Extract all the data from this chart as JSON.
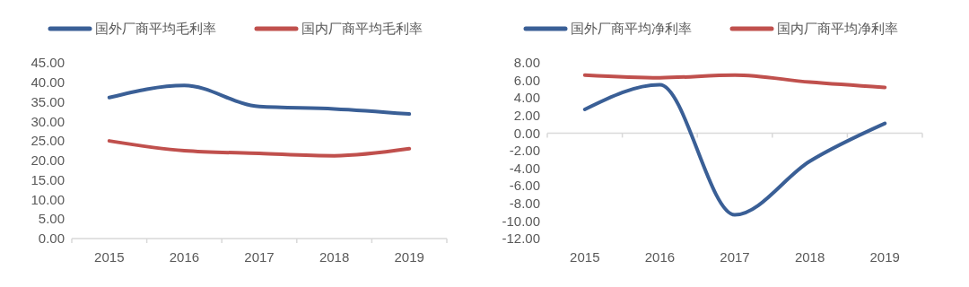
{
  "chart_data": [
    {
      "type": "line",
      "categories": [
        "2015",
        "2016",
        "2017",
        "2018",
        "2019"
      ],
      "legend": "top",
      "line_style": "solid",
      "ylim": [
        0,
        45
      ],
      "yticks": [
        {
          "value": 0,
          "label": "0.00"
        },
        {
          "value": 5,
          "label": "5.00"
        },
        {
          "value": 10,
          "label": "10.00"
        },
        {
          "value": 15,
          "label": "15.00"
        },
        {
          "value": 20,
          "label": "20.00"
        },
        {
          "value": 25,
          "label": "25.00"
        },
        {
          "value": 30,
          "label": "30.00"
        },
        {
          "value": 35,
          "label": "35.00"
        },
        {
          "value": 40,
          "label": "40.00"
        },
        {
          "value": 45,
          "label": "45.00"
        }
      ],
      "series": [
        {
          "name": "国外厂商平均毛利率",
          "color": "#3a5f96",
          "values": [
            36.1,
            39.2,
            33.8,
            33.2,
            31.9
          ]
        },
        {
          "name": "国内厂商平均毛利率",
          "color": "#c0504d",
          "values": [
            25.0,
            22.5,
            21.8,
            21.2,
            23.0
          ]
        }
      ]
    },
    {
      "type": "line",
      "categories": [
        "2015",
        "2016",
        "2017",
        "2018",
        "2019"
      ],
      "legend": "top",
      "line_style": "solid",
      "ylim": [
        -12,
        8
      ],
      "yticks": [
        {
          "value": -12,
          "label": "-12.00"
        },
        {
          "value": -10,
          "label": "-10.00"
        },
        {
          "value": -8,
          "label": "-8.00"
        },
        {
          "value": -6,
          "label": "-6.00"
        },
        {
          "value": -4,
          "label": "-4.00"
        },
        {
          "value": -2,
          "label": "-2.00"
        },
        {
          "value": 0,
          "label": "0.00"
        },
        {
          "value": 2,
          "label": "2.00"
        },
        {
          "value": 4,
          "label": "4.00"
        },
        {
          "value": 6,
          "label": "6.00"
        },
        {
          "value": 8,
          "label": "8.00"
        }
      ],
      "series": [
        {
          "name": "国外厂商平均净利率",
          "color": "#3a5f96",
          "values": [
            2.7,
            5.5,
            -9.3,
            -3.2,
            1.1
          ]
        },
        {
          "name": "国内厂商平均净利率",
          "color": "#c0504d",
          "values": [
            6.6,
            6.3,
            6.6,
            5.8,
            5.2
          ]
        }
      ]
    }
  ]
}
